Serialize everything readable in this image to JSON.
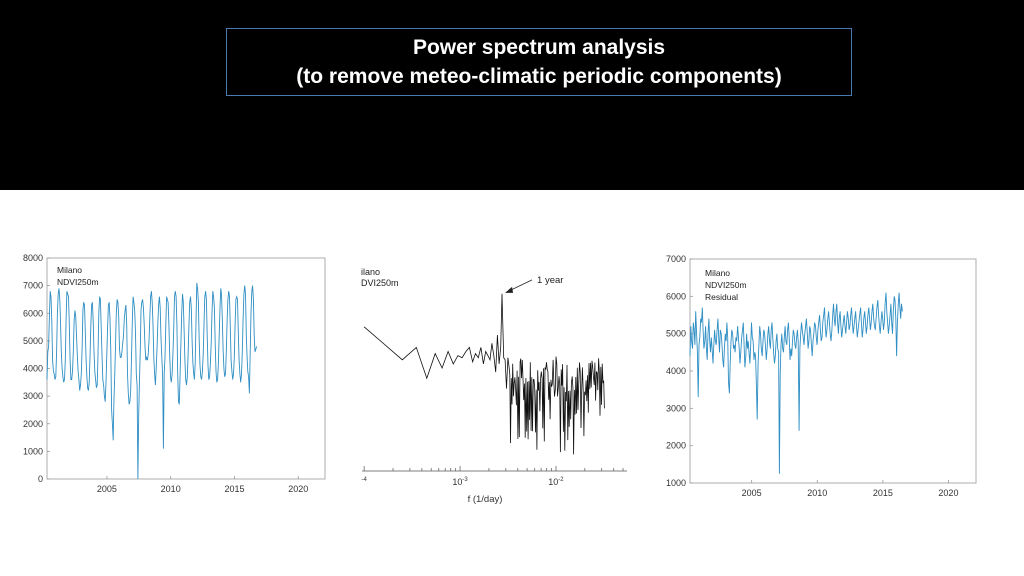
{
  "slide": {
    "title_line1": "Power spectrum analysis",
    "title_line2": "(to remove meteo-climatic periodic components)"
  },
  "chart_data": [
    {
      "type": "line",
      "legend": [
        "Milano",
        "NDVI250m"
      ],
      "xlim": [
        2000.3,
        2022.1
      ],
      "ylim": [
        0,
        8000
      ],
      "x_ticks": [
        "2005",
        "2010",
        "2015",
        "2020"
      ],
      "y_ticks": [
        "0",
        "1000",
        "2000",
        "3000",
        "4000",
        "5000",
        "6000",
        "7000",
        "8000"
      ],
      "color": "#2f8fc4",
      "series": [
        {
          "x_start": 2000.3,
          "x_step": 0.0625,
          "values": [
            3600,
            4600,
            4800,
            5900,
            6800,
            6600,
            5700,
            4300,
            3900,
            3800,
            3600,
            3700,
            4600,
            6000,
            6700,
            6900,
            6500,
            5700,
            4600,
            4000,
            3700,
            3500,
            3600,
            4300,
            5800,
            6800,
            6700,
            6600,
            5600,
            4300,
            3600,
            3600,
            3900,
            4600,
            5700,
            6100,
            5900,
            5200,
            4500,
            3900,
            3600,
            3200,
            3400,
            3800,
            4700,
            6100,
            6400,
            6300,
            5300,
            4300,
            3700,
            3300,
            3200,
            3500,
            4400,
            5500,
            6300,
            6400,
            5700,
            4600,
            3900,
            3600,
            3300,
            3400,
            4500,
            6000,
            6600,
            6500,
            5500,
            4500,
            3600,
            3400,
            3000,
            2800,
            3500,
            4500,
            5500,
            6300,
            6400,
            5800,
            4600,
            2500,
            2000,
            1400,
            2800,
            3700,
            4800,
            6000,
            6500,
            6400,
            5900,
            4700,
            4400,
            4400,
            4600,
            4900,
            5200,
            5800,
            6100,
            6300,
            5600,
            3800,
            3100,
            2700,
            2800,
            3200,
            4400,
            5700,
            6600,
            6400,
            6100,
            5300,
            3800,
            3400,
            0,
            2300,
            3600,
            4700,
            6100,
            6400,
            6500,
            6200,
            5600,
            4800,
            4300,
            4400,
            4300,
            4500,
            5000,
            5800,
            6600,
            6800,
            6400,
            5600,
            4400,
            3800,
            3400,
            4000,
            4700,
            5600,
            6300,
            6600,
            6200,
            5100,
            4400,
            3800,
            1100,
            3800,
            4400,
            5600,
            6600,
            6500,
            6400,
            5600,
            4500,
            3700,
            3500,
            3800,
            4500,
            5400,
            6600,
            6800,
            6600,
            5600,
            3800,
            2800,
            2700,
            3800,
            4900,
            6000,
            6700,
            6400,
            5400,
            4300,
            3600,
            3400,
            3700,
            4500,
            5500,
            6400,
            6600,
            6200,
            5000,
            4200,
            3800,
            3600,
            4200,
            5700,
            7100,
            6900,
            6400,
            5000,
            4100,
            3700,
            3600,
            3900,
            4500,
            5600,
            6600,
            6800,
            6500,
            5200,
            4100,
            3600,
            3700,
            4200,
            4900,
            6000,
            6800,
            6600,
            6200,
            4900,
            3900,
            3500,
            3600,
            4200,
            5200,
            6200,
            6900,
            6700,
            5800,
            4700,
            4000,
            3700,
            3800,
            4600,
            5700,
            6500,
            6800,
            6600,
            5500,
            4300,
            3900,
            3600,
            3800,
            4400,
            5600,
            6500,
            6600,
            6500,
            5300,
            4300,
            3800,
            3500,
            3800,
            4600,
            5800,
            6700,
            7000,
            6700,
            5200,
            4400,
            3900,
            3700,
            3100,
            4600,
            6000,
            6800,
            7000,
            6500,
            5200,
            4600,
            4700,
            4800
          ]
        }
      ]
    },
    {
      "type": "line",
      "legend": [
        "ilano",
        "DVI250m"
      ],
      "x_scale": "log",
      "xlim": [
        9.5e-05,
        0.055
      ],
      "ylim": [
        0,
        1
      ],
      "xlabel": "f (1/day)",
      "x_ticks": [
        {
          "label": "-4",
          "base": "",
          "x": 0.0001
        },
        {
          "label": "-3",
          "base": "10",
          "x": 0.001
        },
        {
          "label": "-2",
          "base": "10",
          "x": 0.01
        }
      ],
      "annotation": {
        "text": "1 year",
        "x": 0.00274,
        "y": 0.86
      },
      "color": "#111111",
      "series": [
        {
          "x": [
            0.0001,
            0.00025,
            0.00035,
            0.00045,
            0.00055,
            0.00065,
            0.00075,
            0.00085,
            0.00095,
            0.00105,
            0.00115,
            0.00125,
            0.00135,
            0.00145,
            0.00155,
            0.00165,
            0.00175,
            0.00185,
            0.00195,
            0.00205,
            0.00215,
            0.00225,
            0.00235,
            0.00245,
            0.00255,
            0.00265,
            0.00274,
            0.00285,
            0.00295,
            0.00305,
            0.00315,
            0.00325
          ],
          "y": [
            0.7,
            0.54,
            0.6,
            0.45,
            0.57,
            0.5,
            0.58,
            0.52,
            0.56,
            0.55,
            0.58,
            0.6,
            0.53,
            0.57,
            0.55,
            0.6,
            0.52,
            0.58,
            0.56,
            0.54,
            0.62,
            0.56,
            0.48,
            0.66,
            0.52,
            0.6,
            0.86,
            0.55,
            0.54,
            0.4,
            0.55,
            0.5
          ],
          "noise_x_start": 0.0033,
          "noise_x_end": 0.032,
          "noise_points": 130,
          "noise_y_range": [
            0.08,
            0.56
          ]
        }
      ]
    },
    {
      "type": "line",
      "legend": [
        "Milano",
        "NDVI250m",
        "Residual"
      ],
      "xlim": [
        2000.3,
        2022.1
      ],
      "ylim": [
        1000,
        7000
      ],
      "x_ticks": [
        "2005",
        "2010",
        "2015",
        "2020"
      ],
      "y_ticks": [
        "1000",
        "2000",
        "3000",
        "4000",
        "5000",
        "6000",
        "7000"
      ],
      "color": "#2f8fc4",
      "series": [
        {
          "x_start": 2000.3,
          "x_step": 0.0625,
          "values": [
            4400,
            5200,
            4800,
            4600,
            5300,
            5100,
            4700,
            5600,
            5000,
            4500,
            3300,
            4700,
            4900,
            5400,
            5300,
            5700,
            5100,
            4600,
            4800,
            5200,
            4600,
            4300,
            5000,
            5400,
            4800,
            4500,
            4900,
            4600,
            4200,
            4700,
            5100,
            4800,
            4700,
            5100,
            5400,
            4900,
            4500,
            5100,
            5000,
            4700,
            4300,
            4100,
            4600,
            5000,
            4800,
            5300,
            4900,
            3700,
            3400,
            4200,
            4800,
            5100,
            5000,
            4600,
            4700,
            4500,
            4900,
            4800,
            5200,
            4900,
            4600,
            4200,
            4500,
            4900,
            5100,
            5300,
            4700,
            4100,
            4400,
            5000,
            4600,
            4800,
            4500,
            4200,
            4700,
            5300,
            4900,
            4800,
            4300,
            4500,
            4400,
            3600,
            2700,
            4200,
            4700,
            5200,
            5000,
            4600,
            4400,
            4800,
            5100,
            5000,
            4700,
            4300,
            4600,
            5000,
            5200,
            4800,
            4600,
            5100,
            5300,
            4900,
            4500,
            4200,
            4400,
            4800,
            5000,
            4600,
            4500,
            1250,
            3900,
            4700,
            5000,
            4600,
            4500,
            4900,
            5200,
            4800,
            4700,
            5100,
            5300,
            4900,
            4300,
            4600,
            4400,
            4800,
            5100,
            5000,
            4700,
            4600,
            4900,
            5100,
            4800,
            2400,
            4600,
            5000,
            5300,
            5100,
            4900,
            4700,
            5000,
            5200,
            5400,
            5000,
            4600,
            4800,
            5200,
            5100,
            4700,
            4400,
            4800,
            5000,
            5300,
            5200,
            4900,
            4700,
            5100,
            5300,
            5500,
            5100,
            4800,
            4900,
            5300,
            5500,
            5700,
            5200,
            4900,
            5100,
            5400,
            5600,
            5300,
            5000,
            4800,
            5100,
            5500,
            5800,
            5400,
            5200,
            5600,
            5800,
            5300,
            5000,
            5400,
            5600,
            5200,
            4900,
            5100,
            5300,
            5500,
            5200,
            5000,
            5300,
            5600,
            5400,
            5100,
            5200,
            5500,
            5700,
            5300,
            5000,
            5200,
            5400,
            5600,
            5200,
            4900,
            5100,
            5300,
            5500,
            5700,
            5300,
            4900,
            5100,
            5400,
            5600,
            5300,
            5000,
            5200,
            5500,
            5700,
            5400,
            5100,
            5300,
            5600,
            5800,
            5400,
            5200,
            5100,
            5400,
            5700,
            5900,
            5500,
            5200,
            5000,
            5300,
            5600,
            5400,
            5100,
            5300,
            5800,
            6100,
            5600,
            5300,
            5000,
            5200,
            5500,
            5800,
            5300,
            5000,
            5600,
            6000,
            5900,
            5400,
            4400,
            5300,
            5800,
            6100,
            5700,
            5400,
            5800,
            5600
          ]
        }
      ]
    }
  ]
}
